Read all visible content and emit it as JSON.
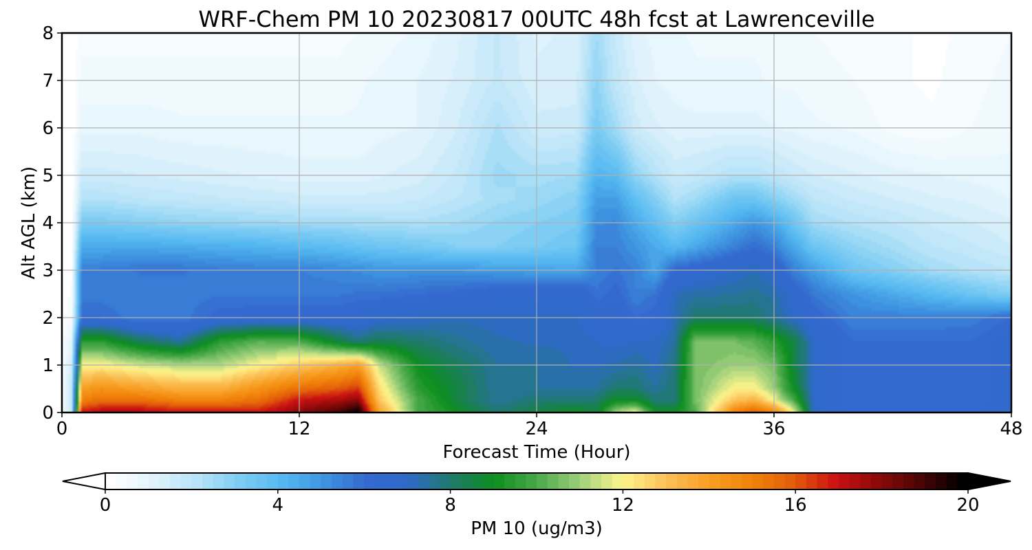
{
  "chart_data": {
    "type": "heatmap",
    "subtype": "filled-contour time-height cross section",
    "title": "WRF-Chem PM 10  20230817 00UTC 48h fcst at Lawrenceville",
    "xlabel": "Forecast Time (Hour)",
    "ylabel": "Alt AGL (km)",
    "xlim": [
      0,
      48
    ],
    "ylim": [
      0,
      8
    ],
    "xticks": [
      0,
      12,
      24,
      36,
      48
    ],
    "yticks": [
      0,
      1,
      2,
      3,
      4,
      5,
      6,
      7,
      8
    ],
    "grid": true,
    "colorbar": {
      "label": "PM 10  (ug/m3)",
      "range": [
        0,
        20
      ],
      "ticks": [
        0,
        4,
        8,
        12,
        16,
        20
      ],
      "extend": "both",
      "orientation": "horizontal",
      "colors": [
        "#ffffff",
        "#e1f3fc",
        "#b9e4f8",
        "#7fcdf4",
        "#56b9f1",
        "#3e94e0",
        "#3469cf",
        "#2e6ac9",
        "#1f7a6a",
        "#0c8e1c",
        "#4aa84a",
        "#9cd07a",
        "#fff58c",
        "#fbc35a",
        "#f9a026",
        "#f2840a",
        "#e25e0a",
        "#cc1212",
        "#8c0a0a",
        "#4a0505",
        "#000000"
      ]
    },
    "x": [
      0,
      0.5,
      1,
      2,
      4,
      6,
      8,
      10,
      12,
      14,
      15,
      16,
      18,
      20,
      22,
      24,
      26,
      27,
      28,
      29,
      30,
      31,
      32,
      34,
      35,
      36,
      37,
      38,
      40,
      42,
      44,
      46,
      48
    ],
    "y": [
      0,
      0.25,
      0.5,
      1,
      1.5,
      2,
      2.5,
      3,
      3.5,
      4,
      4.5,
      5,
      6,
      7,
      8
    ],
    "z": [
      [
        0.3,
        2,
        17,
        17.5,
        17.5,
        17,
        17,
        17,
        18,
        19,
        20,
        14,
        10,
        9,
        8,
        8.5,
        9,
        8.5,
        11,
        12,
        9,
        9,
        10,
        15,
        16,
        15,
        12,
        7,
        6,
        6,
        6,
        6,
        7
      ],
      [
        0.3,
        2,
        15,
        15.5,
        15.5,
        15,
        15,
        15.5,
        17,
        17.5,
        18,
        13,
        10,
        8.5,
        7.5,
        8,
        8,
        8,
        9,
        9,
        8,
        8,
        10.5,
        13,
        13.5,
        12,
        10,
        7,
        6,
        6,
        6,
        6,
        6.5
      ],
      [
        0.3,
        2,
        14,
        14.5,
        14,
        13.5,
        13.5,
        14.5,
        15.5,
        16,
        16.5,
        12.5,
        9.5,
        8.5,
        7.5,
        7.5,
        7.5,
        7.5,
        8,
        8,
        7.5,
        8,
        10.5,
        12,
        12,
        11,
        9,
        7,
        6,
        6,
        6,
        6,
        6.5
      ],
      [
        0.3,
        1.5,
        12,
        12,
        11.5,
        11.2,
        11.2,
        12,
        12.8,
        13.5,
        14,
        11.5,
        9,
        8.2,
        7.5,
        7.5,
        7.2,
        7.2,
        7.3,
        7.5,
        7.2,
        7.8,
        10.5,
        11,
        11,
        10.5,
        8.5,
        7,
        6,
        6,
        6,
        6,
        6.5
      ],
      [
        0.2,
        1,
        9.5,
        9.5,
        8.2,
        7.5,
        9.5,
        10.2,
        10,
        8.5,
        7.8,
        8.3,
        8,
        7.6,
        7.3,
        7.2,
        7.2,
        7,
        6.8,
        7,
        7,
        7.5,
        10.5,
        10.5,
        10.2,
        9.5,
        8.5,
        7,
        6,
        6,
        6,
        6,
        6.5
      ],
      [
        0.1,
        0.5,
        6,
        6,
        5.5,
        5.6,
        6.2,
        6.3,
        6.3,
        6.3,
        6.5,
        6.8,
        7,
        7.2,
        7.1,
        7,
        7,
        6.5,
        6.5,
        6,
        6.2,
        7.3,
        8,
        8,
        8,
        7.6,
        7,
        6.3,
        5.5,
        5.5,
        5.5,
        5.6,
        6
      ],
      [
        0.05,
        0.3,
        5.6,
        5.6,
        5.5,
        5.6,
        5.7,
        5.7,
        5.7,
        5.7,
        5.8,
        5.8,
        6,
        6.2,
        6.5,
        6.6,
        6.8,
        5.8,
        6.2,
        5.5,
        5.8,
        7.2,
        7.4,
        7.5,
        7.6,
        7.4,
        6.6,
        5.7,
        5,
        4.5,
        4,
        3.5,
        3
      ],
      [
        0,
        0.2,
        5.5,
        5.6,
        5.8,
        5.8,
        5.6,
        5.5,
        5.5,
        5.3,
        5.2,
        5,
        5,
        5,
        4.8,
        4.7,
        4.5,
        5.5,
        5.8,
        5.5,
        4.6,
        6.2,
        6.5,
        7,
        7.2,
        6.8,
        5.5,
        4.8,
        3.5,
        3,
        2.5,
        2.2,
        2
      ],
      [
        0,
        0.1,
        4.5,
        4.5,
        4.5,
        4.4,
        4.3,
        4.2,
        4,
        3.8,
        3.6,
        3.5,
        3.3,
        3,
        3,
        3.2,
        3.5,
        5.5,
        5.5,
        5,
        4.5,
        4,
        4.5,
        5.5,
        6,
        5.5,
        4.5,
        3.5,
        2.8,
        2.4,
        2,
        1.8,
        1.5
      ],
      [
        0,
        0.1,
        3.2,
        3.2,
        3,
        2.8,
        2.7,
        2.6,
        2.5,
        2.5,
        2.4,
        2.4,
        2.3,
        2.5,
        2.8,
        3,
        3.2,
        5.2,
        5.3,
        4.5,
        3.8,
        3,
        3.5,
        4.5,
        5,
        4.5,
        3.5,
        2.5,
        2.2,
        2,
        1.7,
        1.5,
        1.3
      ],
      [
        0,
        0,
        2.2,
        2.2,
        2,
        1.9,
        1.8,
        1.7,
        1.6,
        1.6,
        1.6,
        1.6,
        1.7,
        2,
        2.4,
        2.6,
        2.9,
        4.8,
        4.8,
        3.8,
        3,
        2.2,
        2.5,
        3.5,
        3.5,
        3,
        2.5,
        2,
        1.7,
        1.5,
        1.3,
        1.2,
        1
      ],
      [
        0,
        0,
        1.6,
        1.6,
        1.5,
        1.4,
        1.3,
        1.2,
        1.1,
        1.1,
        1.1,
        1.2,
        1.4,
        1.8,
        2.6,
        2.4,
        2.5,
        4.2,
        4,
        2.8,
        2.2,
        1.7,
        1.8,
        2.2,
        2.2,
        2,
        1.7,
        1.5,
        1.3,
        1.1,
        1,
        0.9,
        0.8
      ],
      [
        0,
        0,
        0.9,
        0.9,
        0.9,
        0.8,
        0.8,
        0.8,
        0.8,
        0.8,
        0.8,
        0.9,
        1,
        1.5,
        2.3,
        1.6,
        1.6,
        3.2,
        2.5,
        1.6,
        1.3,
        1.1,
        1.1,
        1.1,
        1.1,
        1,
        0.9,
        0.8,
        0.7,
        0.4,
        0.3,
        0.5,
        0.7
      ],
      [
        0,
        0,
        0.6,
        0.6,
        0.6,
        0.6,
        0.6,
        0.6,
        0.6,
        0.6,
        0.7,
        0.8,
        1,
        1.3,
        1.8,
        1.3,
        1.4,
        2.8,
        1.9,
        1.3,
        1,
        0.9,
        0.8,
        0.8,
        0.8,
        0.7,
        0.7,
        0.6,
        0.5,
        0.3,
        0.2,
        0.4,
        0.6
      ],
      [
        0,
        0,
        0.4,
        0.4,
        0.4,
        0.4,
        0.4,
        0.4,
        0.4,
        0.4,
        0.5,
        0.6,
        0.8,
        1.2,
        1.8,
        1.2,
        1.3,
        2.5,
        1.7,
        1.1,
        0.9,
        0.8,
        0.7,
        0.7,
        0.7,
        0.6,
        0.6,
        0.5,
        0.4,
        0.3,
        0.2,
        0.3,
        0.5
      ]
    ]
  }
}
